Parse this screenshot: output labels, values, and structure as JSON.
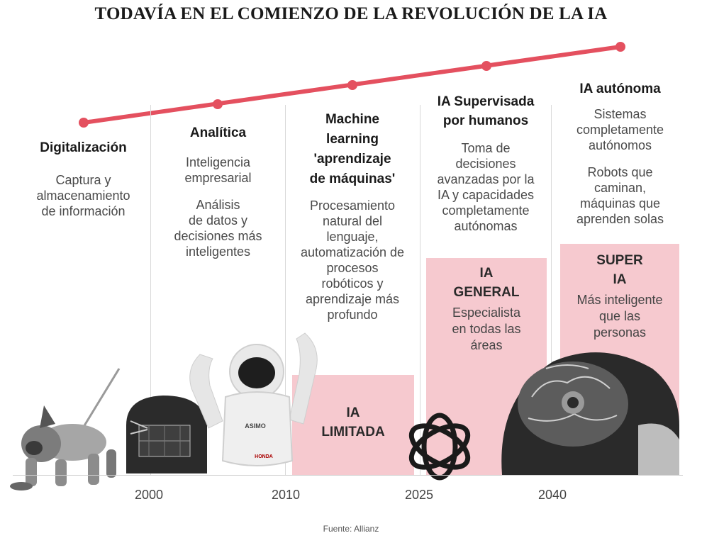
{
  "title": "TODAVÍA EN EL COMIENZO DE LA REVOLUCIÓN DE LA IA",
  "accent_color": "#e4505f",
  "box_color": "#f6c9cf",
  "stages": [
    {
      "title": [
        "Digitalización"
      ],
      "paragraphs": [
        [
          "Captura y",
          "almacenamiento",
          "de información"
        ]
      ]
    },
    {
      "title": [
        "Analítica"
      ],
      "paragraphs": [
        [
          "Inteligencia",
          "empresarial"
        ],
        [
          "Análisis",
          "de datos y",
          "decisiones más",
          "inteligentes"
        ]
      ]
    },
    {
      "title": [
        "Machine",
        "learning",
        "'aprendizaje",
        "de máquinas'"
      ],
      "paragraphs": [
        [
          "Procesamiento",
          "natural del",
          "lenguaje,",
          "automatización de",
          "procesos",
          "robóticos y",
          "aprendizaje más",
          "profundo"
        ]
      ]
    },
    {
      "title": [
        "IA Supervisada",
        "por humanos"
      ],
      "paragraphs": [
        [
          "Toma de",
          "decisiones",
          "avanzadas por la",
          "IA y capacidades",
          "completamente",
          "autónomas"
        ]
      ]
    },
    {
      "title": [
        "IA autónoma"
      ],
      "paragraphs": [
        [
          "Sistemas",
          "completamente",
          "autónomos"
        ],
        [
          "Robots que",
          "caminan,",
          "máquinas que",
          "aprenden solas"
        ]
      ]
    }
  ],
  "levels": [
    {
      "title": [
        "IA",
        "LIMITADA"
      ],
      "desc": []
    },
    {
      "title": [
        "IA",
        "GENERAL"
      ],
      "desc": [
        "Especialista",
        "en todas las",
        "áreas"
      ]
    },
    {
      "title": [
        "SUPER",
        "IA"
      ],
      "desc": [
        "Más inteligente",
        "que las",
        "personas"
      ]
    }
  ],
  "robot_labels": {
    "chest": "ASIMO",
    "leg": "HONDA"
  },
  "years": [
    "2000",
    "2010",
    "2025",
    "2040"
  ],
  "source": "Fuente: Allianz"
}
